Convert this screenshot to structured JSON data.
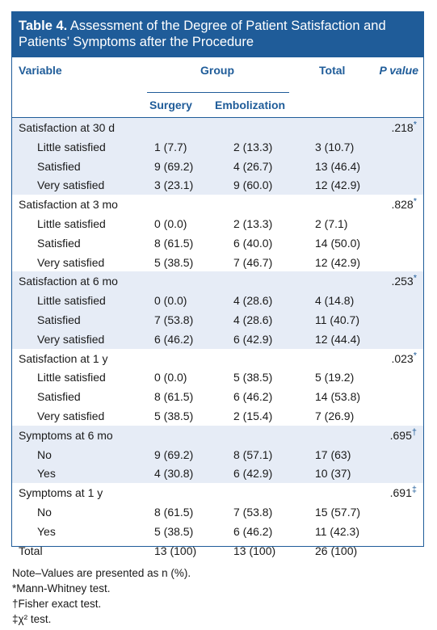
{
  "table": {
    "title_prefix": "Table 4.",
    "title_text": "Assessment of the Degree of Patient Satisfaction and Patients’ Symptoms after the Procedure",
    "headers": {
      "variable": "Variable",
      "group": "Group",
      "total": "Total",
      "p_value": "P value",
      "surgery": "Surgery",
      "embolization": "Embolization"
    },
    "rows": [
      {
        "label": "Satisfaction at 30 d",
        "surgery": "",
        "embolization": "",
        "total": "",
        "p": ".218",
        "sym": "*"
      },
      {
        "label": "Little satisfied",
        "surgery": "1 (7.7)",
        "embolization": "2 (13.3)",
        "total": "3 (10.7)",
        "p": "",
        "sym": ""
      },
      {
        "label": "Satisfied",
        "surgery": "9 (69.2)",
        "embolization": "4 (26.7)",
        "total": "13 (46.4)",
        "p": "",
        "sym": ""
      },
      {
        "label": "Very satisfied",
        "surgery": "3 (23.1)",
        "embolization": "9 (60.0)",
        "total": "12 (42.9)",
        "p": "",
        "sym": ""
      },
      {
        "label": "Satisfaction at 3 mo",
        "surgery": "",
        "embolization": "",
        "total": "",
        "p": ".828",
        "sym": "*"
      },
      {
        "label": "Little satisfied",
        "surgery": "0 (0.0)",
        "embolization": "2 (13.3)",
        "total": "2 (7.1)",
        "p": "",
        "sym": ""
      },
      {
        "label": "Satisfied",
        "surgery": "8 (61.5)",
        "embolization": "6 (40.0)",
        "total": "14 (50.0)",
        "p": "",
        "sym": ""
      },
      {
        "label": "Very satisfied",
        "surgery": "5 (38.5)",
        "embolization": "7 (46.7)",
        "total": "12 (42.9)",
        "p": "",
        "sym": ""
      },
      {
        "label": "Satisfaction at 6 mo",
        "surgery": "",
        "embolization": "",
        "total": "",
        "p": ".253",
        "sym": "*"
      },
      {
        "label": "Little satisfied",
        "surgery": "0 (0.0)",
        "embolization": "4 (28.6)",
        "total": "4 (14.8)",
        "p": "",
        "sym": ""
      },
      {
        "label": "Satisfied",
        "surgery": "7 (53.8)",
        "embolization": "4 (28.6)",
        "total": "11 (40.7)",
        "p": "",
        "sym": ""
      },
      {
        "label": "Very satisfied",
        "surgery": "6 (46.2)",
        "embolization": "6 (42.9)",
        "total": "12 (44.4)",
        "p": "",
        "sym": ""
      },
      {
        "label": "Satisfaction at 1 y",
        "surgery": "",
        "embolization": "",
        "total": "",
        "p": ".023",
        "sym": "*"
      },
      {
        "label": "Little satisfied",
        "surgery": "0 (0.0)",
        "embolization": "5 (38.5)",
        "total": "5 (19.2)",
        "p": "",
        "sym": ""
      },
      {
        "label": "Satisfied",
        "surgery": "8 (61.5)",
        "embolization": "6 (46.2)",
        "total": "14 (53.8)",
        "p": "",
        "sym": ""
      },
      {
        "label": "Very satisfied",
        "surgery": "5 (38.5)",
        "embolization": "2 (15.4)",
        "total": "7 (26.9)",
        "p": "",
        "sym": ""
      },
      {
        "label": "Symptoms at 6 mo",
        "surgery": "",
        "embolization": "",
        "total": "",
        "p": ".695",
        "sym": "†"
      },
      {
        "label": "No",
        "surgery": "9 (69.2)",
        "embolization": "8 (57.1)",
        "total": "17 (63)",
        "p": "",
        "sym": ""
      },
      {
        "label": "Yes",
        "surgery": "4 (30.8)",
        "embolization": "6 (42.9)",
        "total": "10 (37)",
        "p": "",
        "sym": ""
      },
      {
        "label": "Symptoms at 1 y",
        "surgery": "",
        "embolization": "",
        "total": "",
        "p": ".691",
        "sym": "‡"
      },
      {
        "label": "No",
        "surgery": "8 (61.5)",
        "embolization": "7 (53.8)",
        "total": "15 (57.7)",
        "p": "",
        "sym": ""
      },
      {
        "label": "Yes",
        "surgery": "5 (38.5)",
        "embolization": "6 (46.2)",
        "total": "11 (42.3)",
        "p": "",
        "sym": ""
      },
      {
        "label": "Total",
        "surgery": "13 (100)",
        "embolization": "13 (100)",
        "total": "26 (100)",
        "p": "",
        "sym": ""
      }
    ],
    "notes": [
      "Note–Values are presented as n (%).",
      "*Mann-Whitney test.",
      "†Fisher exact test.",
      "‡χ² test."
    ]
  },
  "colors": {
    "accent": "#1f5c99",
    "shade": "#e6ecf6"
  }
}
